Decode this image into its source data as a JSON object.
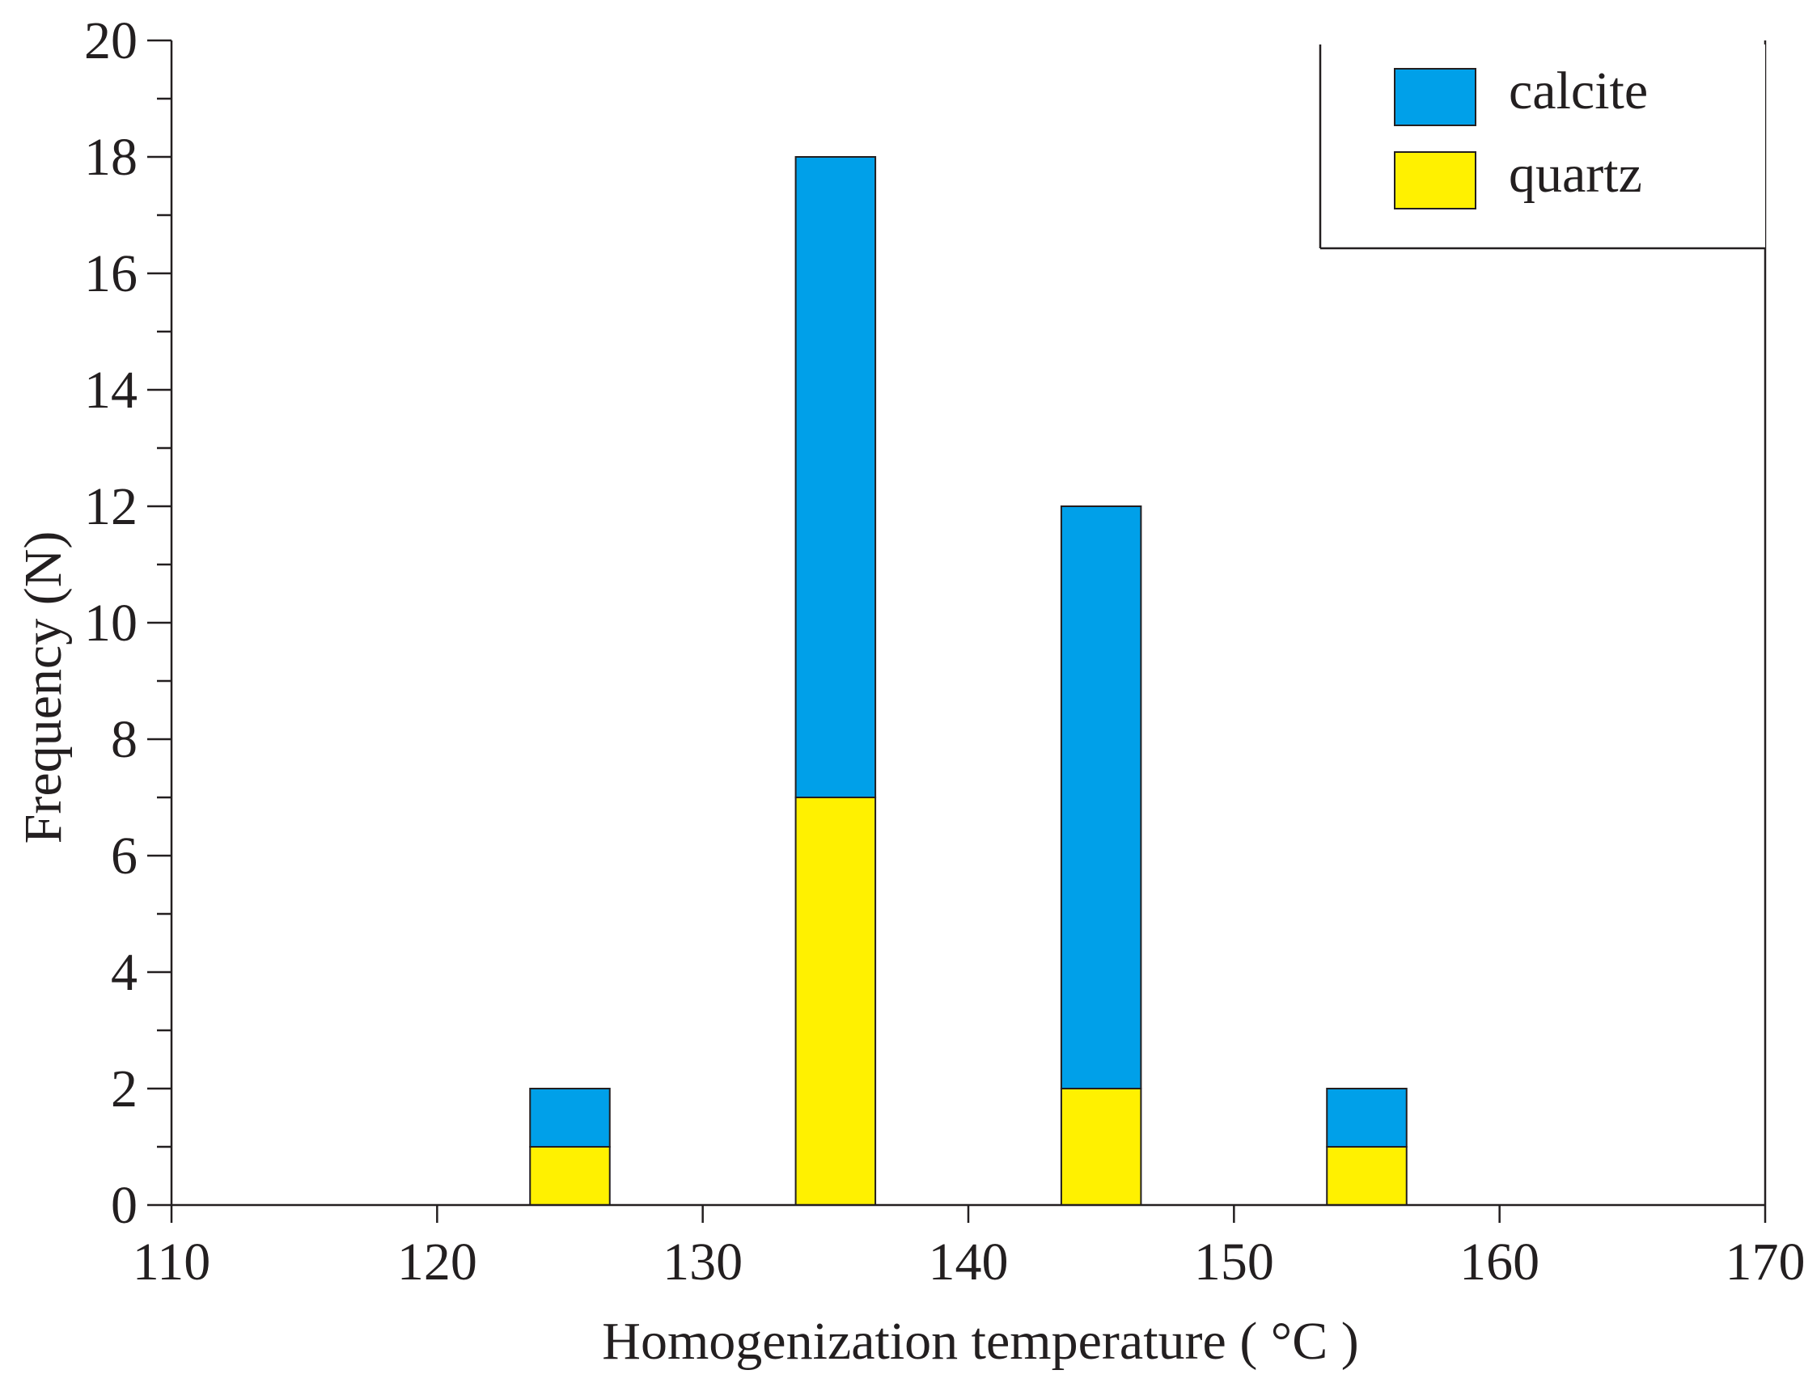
{
  "chart_data": {
    "type": "bar",
    "stacked": true,
    "xlabel": "Homogenization temperature ( °C )",
    "ylabel": "Frequency (N)",
    "xlim": [
      110,
      170
    ],
    "ylim": [
      0,
      20
    ],
    "x_ticks": [
      110,
      120,
      130,
      140,
      150,
      160,
      170
    ],
    "y_ticks": [
      0,
      2,
      4,
      6,
      8,
      10,
      12,
      14,
      16,
      18,
      20
    ],
    "y_minor_step": 1,
    "bin_width": 3,
    "x": [
      125,
      135,
      145,
      155
    ],
    "series": [
      {
        "name": "quartz",
        "color": "#fff100",
        "values": [
          1,
          7,
          2,
          1
        ]
      },
      {
        "name": "calcite",
        "color": "#00a0e9",
        "values": [
          1,
          11,
          10,
          1
        ]
      }
    ],
    "legend": {
      "position": "top-right",
      "items": [
        {
          "label": "calcite",
          "color": "#00a0e9"
        },
        {
          "label": "quartz",
          "color": "#fff100"
        }
      ]
    }
  }
}
